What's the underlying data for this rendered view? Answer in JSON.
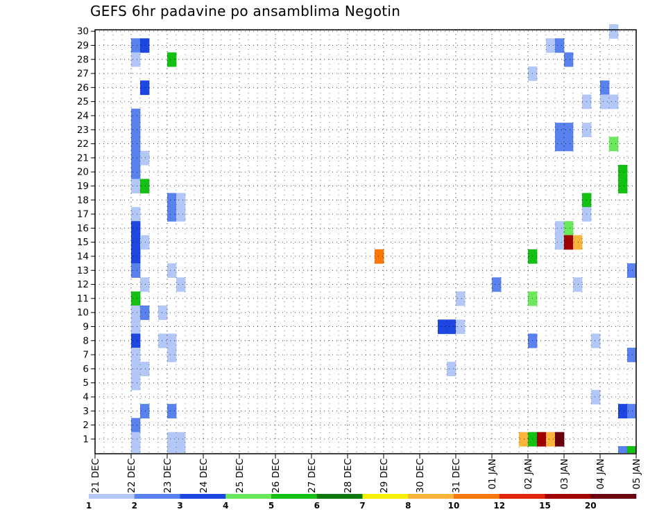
{
  "title": "GEFS 6hr padavine po ansamblima Negotin",
  "chart_data": {
    "type": "heatmap",
    "title": "GEFS 6hr padavine po ansamblima Negotin",
    "xlabel": "",
    "ylabel": "",
    "x_tick_labels": [
      "21 DEC",
      "22 DEC",
      "23 DEC",
      "24 DEC",
      "25 DEC",
      "26 DEC",
      "27 DEC",
      "28 DEC",
      "29 DEC",
      "30 DEC",
      "31 DEC",
      "01 JAN",
      "02 JAN",
      "03 JAN",
      "04 JAN",
      "05 JAN"
    ],
    "x_unit": "6-hour steps",
    "xlim_steps": [
      0,
      60
    ],
    "y_tick_labels": [
      "1",
      "2",
      "3",
      "4",
      "5",
      "6",
      "7",
      "8",
      "9",
      "10",
      "11",
      "12",
      "13",
      "14",
      "15",
      "16",
      "17",
      "18",
      "19",
      "20",
      "21",
      "22",
      "23",
      "24",
      "25",
      "26",
      "27",
      "28",
      "29",
      "30"
    ],
    "grid": true,
    "legend": {
      "placement": "bottom",
      "colors": [
        "#b4c8f8",
        "#5a82ee",
        "#1e46e0",
        "#6ce85c",
        "#14c014",
        "#0a780a",
        "#f8f000",
        "#fab43c",
        "#f8780a",
        "#e02808",
        "#a00000",
        "#6a0010"
      ],
      "labels": [
        "1",
        "2",
        "3",
        "4",
        "5",
        "6",
        "7",
        "8",
        "10",
        "12",
        "15",
        "20"
      ]
    },
    "cells": [
      {
        "member": 30,
        "step": 57,
        "cat": 0
      },
      {
        "member": 29,
        "step": 4,
        "cat": 1
      },
      {
        "member": 29,
        "step": 5,
        "cat": 2
      },
      {
        "member": 29,
        "step": 50,
        "cat": 0
      },
      {
        "member": 29,
        "step": 51,
        "cat": 1
      },
      {
        "member": 28,
        "step": 4,
        "cat": 0
      },
      {
        "member": 28,
        "step": 8,
        "cat": 4
      },
      {
        "member": 28,
        "step": 52,
        "cat": 1
      },
      {
        "member": 27,
        "step": 48,
        "cat": 0
      },
      {
        "member": 26,
        "step": 5,
        "cat": 2
      },
      {
        "member": 26,
        "step": 56,
        "cat": 1
      },
      {
        "member": 25,
        "step": 54,
        "cat": 0
      },
      {
        "member": 25,
        "step": 56,
        "cat": 0
      },
      {
        "member": 25,
        "step": 57,
        "cat": 0
      },
      {
        "member": 24,
        "step": 4,
        "cat": 1
      },
      {
        "member": 23,
        "step": 4,
        "cat": 1
      },
      {
        "member": 23,
        "step": 51,
        "cat": 1
      },
      {
        "member": 23,
        "step": 52,
        "cat": 1
      },
      {
        "member": 23,
        "step": 54,
        "cat": 0
      },
      {
        "member": 22,
        "step": 4,
        "cat": 1
      },
      {
        "member": 22,
        "step": 51,
        "cat": 1
      },
      {
        "member": 22,
        "step": 52,
        "cat": 1
      },
      {
        "member": 22,
        "step": 57,
        "cat": 3
      },
      {
        "member": 21,
        "step": 4,
        "cat": 1
      },
      {
        "member": 21,
        "step": 5,
        "cat": 0
      },
      {
        "member": 20,
        "step": 4,
        "cat": 1
      },
      {
        "member": 20,
        "step": 58,
        "cat": 4
      },
      {
        "member": 19,
        "step": 4,
        "cat": 0
      },
      {
        "member": 19,
        "step": 5,
        "cat": 4
      },
      {
        "member": 19,
        "step": 58,
        "cat": 4
      },
      {
        "member": 18,
        "step": 8,
        "cat": 1
      },
      {
        "member": 18,
        "step": 9,
        "cat": 0
      },
      {
        "member": 18,
        "step": 54,
        "cat": 4
      },
      {
        "member": 17,
        "step": 4,
        "cat": 0
      },
      {
        "member": 17,
        "step": 8,
        "cat": 1
      },
      {
        "member": 17,
        "step": 9,
        "cat": 0
      },
      {
        "member": 17,
        "step": 54,
        "cat": 0
      },
      {
        "member": 16,
        "step": 4,
        "cat": 2
      },
      {
        "member": 16,
        "step": 51,
        "cat": 0
      },
      {
        "member": 16,
        "step": 52,
        "cat": 3
      },
      {
        "member": 15,
        "step": 4,
        "cat": 2
      },
      {
        "member": 15,
        "step": 5,
        "cat": 0
      },
      {
        "member": 15,
        "step": 51,
        "cat": 0
      },
      {
        "member": 15,
        "step": 52,
        "cat": 10
      },
      {
        "member": 15,
        "step": 53,
        "cat": 7
      },
      {
        "member": 14,
        "step": 4,
        "cat": 2
      },
      {
        "member": 14,
        "step": 31,
        "cat": 8
      },
      {
        "member": 14,
        "step": 48,
        "cat": 4
      },
      {
        "member": 13,
        "step": 4,
        "cat": 1
      },
      {
        "member": 13,
        "step": 8,
        "cat": 0
      },
      {
        "member": 13,
        "step": 59,
        "cat": 1
      },
      {
        "member": 12,
        "step": 5,
        "cat": 0
      },
      {
        "member": 12,
        "step": 9,
        "cat": 0
      },
      {
        "member": 12,
        "step": 44,
        "cat": 1
      },
      {
        "member": 12,
        "step": 53,
        "cat": 0
      },
      {
        "member": 11,
        "step": 4,
        "cat": 4
      },
      {
        "member": 11,
        "step": 40,
        "cat": 0
      },
      {
        "member": 11,
        "step": 48,
        "cat": 3
      },
      {
        "member": 10,
        "step": 4,
        "cat": 0
      },
      {
        "member": 10,
        "step": 5,
        "cat": 1
      },
      {
        "member": 10,
        "step": 7,
        "cat": 0
      },
      {
        "member": 9,
        "step": 4,
        "cat": 0
      },
      {
        "member": 9,
        "step": 38,
        "cat": 2
      },
      {
        "member": 9,
        "step": 39,
        "cat": 2
      },
      {
        "member": 9,
        "step": 40,
        "cat": 0
      },
      {
        "member": 8,
        "step": 4,
        "cat": 2
      },
      {
        "member": 8,
        "step": 7,
        "cat": 0
      },
      {
        "member": 8,
        "step": 8,
        "cat": 0
      },
      {
        "member": 8,
        "step": 48,
        "cat": 1
      },
      {
        "member": 8,
        "step": 55,
        "cat": 0
      },
      {
        "member": 7,
        "step": 4,
        "cat": 0
      },
      {
        "member": 7,
        "step": 8,
        "cat": 0
      },
      {
        "member": 7,
        "step": 59,
        "cat": 1
      },
      {
        "member": 6,
        "step": 4,
        "cat": 0
      },
      {
        "member": 6,
        "step": 5,
        "cat": 0
      },
      {
        "member": 6,
        "step": 39,
        "cat": 0
      },
      {
        "member": 5,
        "step": 4,
        "cat": 0
      },
      {
        "member": 4,
        "step": 55,
        "cat": 0
      },
      {
        "member": 3,
        "step": 5,
        "cat": 1
      },
      {
        "member": 3,
        "step": 8,
        "cat": 1
      },
      {
        "member": 3,
        "step": 58,
        "cat": 2
      },
      {
        "member": 3,
        "step": 59,
        "cat": 1
      },
      {
        "member": 2,
        "step": 4,
        "cat": 1
      },
      {
        "member": 1,
        "step": 4,
        "cat": 0
      },
      {
        "member": 1,
        "step": 8,
        "cat": 0
      },
      {
        "member": 1,
        "step": 9,
        "cat": 0
      },
      {
        "member": 1,
        "step": 47,
        "cat": 7
      },
      {
        "member": 1,
        "step": 48,
        "cat": 4
      },
      {
        "member": 1,
        "step": 49,
        "cat": 10
      },
      {
        "member": 1,
        "step": 50,
        "cat": 7
      },
      {
        "member": 1,
        "step": 51,
        "cat": 11
      },
      {
        "member": 0,
        "step": 4,
        "cat": 0
      },
      {
        "member": 0,
        "step": 8,
        "cat": 0
      },
      {
        "member": 0,
        "step": 9,
        "cat": 0
      },
      {
        "member": 0,
        "step": 58,
        "cat": 1
      },
      {
        "member": 0,
        "step": 59,
        "cat": 4
      }
    ]
  }
}
